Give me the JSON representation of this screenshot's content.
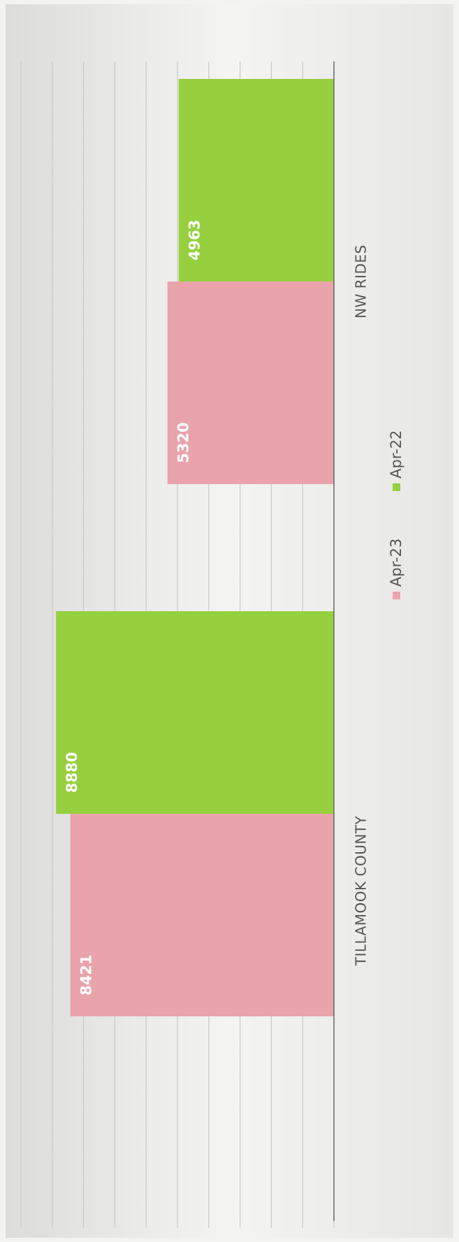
{
  "chart_data": {
    "type": "bar",
    "categories": [
      "TILLAMOOK COUNTY",
      "NW RIDES"
    ],
    "series": [
      {
        "name": "Apr-23",
        "color": "#e9a3ab",
        "values": [
          8421,
          5320
        ]
      },
      {
        "name": "Apr-22",
        "color": "#96d03e",
        "values": [
          8880,
          4963
        ]
      }
    ],
    "ylim": [
      0,
      10000
    ],
    "yticks": [
      0,
      1000,
      2000,
      3000,
      4000,
      5000,
      6000,
      7000,
      8000,
      9000,
      10000
    ],
    "grid": true,
    "legend": "bottom"
  }
}
